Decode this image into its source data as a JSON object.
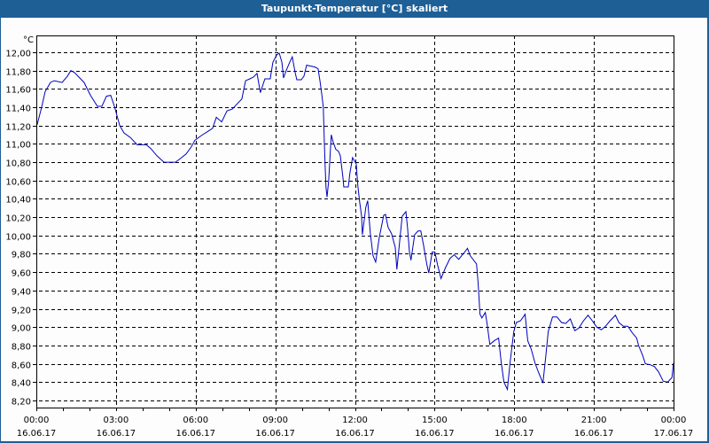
{
  "window": {
    "title": "Taupunkt-Temperatur [°C] skaliert",
    "title_bar_color": "#1e5f96",
    "background": "#fcfdfc"
  },
  "chart_data": {
    "type": "line",
    "title": "Taupunkt-Temperatur [°C] skaliert",
    "ylabel": "°C",
    "xlabel": "",
    "ylim": [
      8.12,
      12.19
    ],
    "xlim_hours": [
      0,
      24
    ],
    "grid": true,
    "legend": null,
    "y_ticks": [
      "12,00",
      "11,80",
      "11,60",
      "11,40",
      "11,20",
      "11,00",
      "10,80",
      "10,60",
      "10,40",
      "10,20",
      "10,00",
      "9,80",
      "9,60",
      "9,40",
      "9,20",
      "9,00",
      "8,80",
      "8,60",
      "8,40",
      "8,20"
    ],
    "y_tick_values": [
      12.0,
      11.8,
      11.6,
      11.4,
      11.2,
      11.0,
      10.8,
      10.6,
      10.4,
      10.2,
      10.0,
      9.8,
      9.6,
      9.4,
      9.2,
      9.0,
      8.8,
      8.6,
      8.4,
      8.2
    ],
    "x_ticks": [
      {
        "hour": 0,
        "time": "00:00",
        "date": "16.06.17"
      },
      {
        "hour": 3,
        "time": "03:00",
        "date": "16.06.17"
      },
      {
        "hour": 6,
        "time": "06:00",
        "date": "16.06.17"
      },
      {
        "hour": 9,
        "time": "09:00",
        "date": "16.06.17"
      },
      {
        "hour": 12,
        "time": "12:00",
        "date": "16.06.17"
      },
      {
        "hour": 15,
        "time": "15:00",
        "date": "16.06.17"
      },
      {
        "hour": 18,
        "time": "18:00",
        "date": "16.06.17"
      },
      {
        "hour": 21,
        "time": "21:00",
        "date": "16.06.17"
      },
      {
        "hour": 24,
        "time": "00:00",
        "date": "17.06.17"
      }
    ],
    "series": [
      {
        "name": "Taupunkt-Temperatur",
        "color": "#0000c0",
        "points": [
          [
            0.03,
            11.21
          ],
          [
            0.2,
            11.4
          ],
          [
            0.33,
            11.57
          ],
          [
            0.53,
            11.67
          ],
          [
            0.67,
            11.69
          ],
          [
            0.97,
            11.67
          ],
          [
            1.17,
            11.74
          ],
          [
            1.3,
            11.8
          ],
          [
            1.43,
            11.78
          ],
          [
            1.8,
            11.67
          ],
          [
            2.04,
            11.53
          ],
          [
            2.3,
            11.41
          ],
          [
            2.47,
            11.41
          ],
          [
            2.64,
            11.52
          ],
          [
            2.8,
            11.53
          ],
          [
            2.94,
            11.41
          ],
          [
            3.14,
            11.2
          ],
          [
            3.3,
            11.12
          ],
          [
            3.54,
            11.07
          ],
          [
            3.8,
            10.99
          ],
          [
            4.14,
            10.99
          ],
          [
            4.31,
            10.95
          ],
          [
            4.54,
            10.87
          ],
          [
            4.81,
            10.8
          ],
          [
            5.24,
            10.8
          ],
          [
            5.47,
            10.85
          ],
          [
            5.64,
            10.89
          ],
          [
            5.84,
            10.97
          ],
          [
            5.97,
            11.04
          ],
          [
            6.21,
            11.09
          ],
          [
            6.48,
            11.14
          ],
          [
            6.64,
            11.17
          ],
          [
            6.78,
            11.29
          ],
          [
            6.98,
            11.24
          ],
          [
            7.18,
            11.36
          ],
          [
            7.38,
            11.38
          ],
          [
            7.64,
            11.46
          ],
          [
            7.74,
            11.49
          ],
          [
            7.81,
            11.59
          ],
          [
            7.88,
            11.69
          ],
          [
            8.04,
            11.71
          ],
          [
            8.18,
            11.73
          ],
          [
            8.31,
            11.77
          ],
          [
            8.44,
            11.56
          ],
          [
            8.61,
            11.71
          ],
          [
            8.81,
            11.71
          ],
          [
            8.91,
            11.89
          ],
          [
            9.05,
            11.97
          ],
          [
            9.15,
            11.99
          ],
          [
            9.25,
            11.89
          ],
          [
            9.31,
            11.72
          ],
          [
            9.41,
            11.8
          ],
          [
            9.54,
            11.89
          ],
          [
            9.64,
            11.95
          ],
          [
            9.74,
            11.79
          ],
          [
            9.81,
            11.7
          ],
          [
            9.98,
            11.7
          ],
          [
            10.08,
            11.74
          ],
          [
            10.18,
            11.86
          ],
          [
            10.31,
            11.85
          ],
          [
            10.48,
            11.84
          ],
          [
            10.61,
            11.82
          ],
          [
            10.68,
            11.69
          ],
          [
            10.75,
            11.54
          ],
          [
            10.81,
            11.4
          ],
          [
            10.85,
            11.01
          ],
          [
            10.88,
            10.75
          ],
          [
            10.91,
            10.53
          ],
          [
            10.95,
            10.42
          ],
          [
            11.01,
            10.59
          ],
          [
            11.11,
            11.1
          ],
          [
            11.18,
            11.02
          ],
          [
            11.28,
            10.94
          ],
          [
            11.38,
            10.92
          ],
          [
            11.45,
            10.87
          ],
          [
            11.55,
            10.63
          ],
          [
            11.58,
            10.53
          ],
          [
            11.75,
            10.53
          ],
          [
            11.81,
            10.68
          ],
          [
            11.91,
            10.85
          ],
          [
            12.05,
            10.78
          ],
          [
            12.11,
            10.54
          ],
          [
            12.18,
            10.36
          ],
          [
            12.25,
            10.21
          ],
          [
            12.28,
            10.01
          ],
          [
            12.35,
            10.17
          ],
          [
            12.41,
            10.31
          ],
          [
            12.48,
            10.38
          ],
          [
            12.58,
            10.02
          ],
          [
            12.68,
            9.78
          ],
          [
            12.78,
            9.71
          ],
          [
            12.91,
            9.97
          ],
          [
            13.08,
            10.22
          ],
          [
            13.15,
            10.23
          ],
          [
            13.25,
            10.09
          ],
          [
            13.38,
            10.02
          ],
          [
            13.52,
            9.87
          ],
          [
            13.58,
            9.63
          ],
          [
            13.68,
            9.92
          ],
          [
            13.78,
            10.21
          ],
          [
            13.92,
            10.26
          ],
          [
            13.98,
            10.09
          ],
          [
            14.05,
            9.83
          ],
          [
            14.11,
            9.73
          ],
          [
            14.25,
            10.01
          ],
          [
            14.38,
            10.05
          ],
          [
            14.48,
            10.05
          ],
          [
            14.58,
            9.9
          ],
          [
            14.71,
            9.68
          ],
          [
            14.78,
            9.59
          ],
          [
            14.91,
            9.82
          ],
          [
            15.01,
            9.82
          ],
          [
            15.11,
            9.68
          ],
          [
            15.24,
            9.53
          ],
          [
            15.41,
            9.65
          ],
          [
            15.58,
            9.75
          ],
          [
            15.74,
            9.79
          ],
          [
            15.91,
            9.74
          ],
          [
            16.08,
            9.8
          ],
          [
            16.24,
            9.86
          ],
          [
            16.34,
            9.78
          ],
          [
            16.58,
            9.69
          ],
          [
            16.64,
            9.48
          ],
          [
            16.71,
            9.14
          ],
          [
            16.78,
            9.1
          ],
          [
            16.91,
            9.16
          ],
          [
            16.98,
            9.03
          ],
          [
            17.08,
            8.81
          ],
          [
            17.24,
            8.85
          ],
          [
            17.41,
            8.88
          ],
          [
            17.51,
            8.61
          ],
          [
            17.61,
            8.4
          ],
          [
            17.74,
            8.32
          ],
          [
            17.84,
            8.61
          ],
          [
            17.98,
            8.95
          ],
          [
            18.08,
            9.05
          ],
          [
            18.24,
            9.07
          ],
          [
            18.41,
            9.14
          ],
          [
            18.51,
            8.85
          ],
          [
            18.64,
            8.76
          ],
          [
            18.78,
            8.61
          ],
          [
            18.91,
            8.51
          ],
          [
            19.08,
            8.39
          ],
          [
            19.18,
            8.66
          ],
          [
            19.28,
            8.95
          ],
          [
            19.44,
            9.11
          ],
          [
            19.61,
            9.11
          ],
          [
            19.78,
            9.05
          ],
          [
            19.94,
            9.04
          ],
          [
            20.11,
            9.09
          ],
          [
            20.28,
            8.96
          ],
          [
            20.44,
            8.99
          ],
          [
            20.61,
            9.07
          ],
          [
            20.78,
            9.13
          ],
          [
            20.94,
            9.07
          ],
          [
            21.11,
            9.0
          ],
          [
            21.28,
            8.97
          ],
          [
            21.44,
            9.01
          ],
          [
            21.61,
            9.07
          ],
          [
            21.81,
            9.13
          ],
          [
            21.94,
            9.05
          ],
          [
            22.11,
            9.01
          ],
          [
            22.28,
            9.01
          ],
          [
            22.44,
            8.94
          ],
          [
            22.61,
            8.88
          ],
          [
            22.68,
            8.8
          ],
          [
            22.84,
            8.69
          ],
          [
            22.94,
            8.6
          ],
          [
            23.11,
            8.59
          ],
          [
            23.28,
            8.57
          ],
          [
            23.44,
            8.51
          ],
          [
            23.61,
            8.41
          ],
          [
            23.78,
            8.4
          ],
          [
            23.94,
            8.45
          ],
          [
            24.14,
            8.61
          ]
        ]
      }
    ]
  },
  "axis": {
    "unit_label": "°C"
  }
}
